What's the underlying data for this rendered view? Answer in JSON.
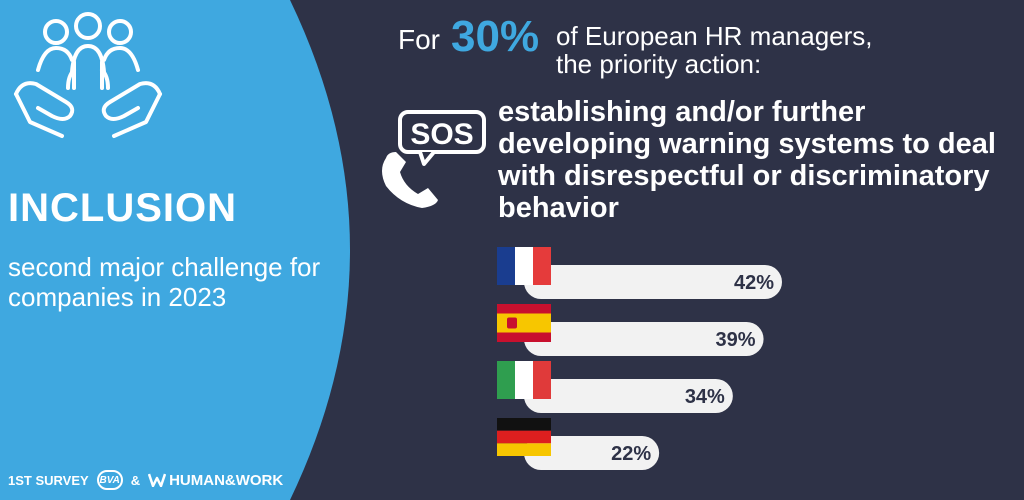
{
  "colors": {
    "background": "#2e3247",
    "accent_blue": "#3fa8e0",
    "bar_fill": "#f2f2f2",
    "bar_text": "#2e3247"
  },
  "left_panel": {
    "icon": "inclusion-hands-people-icon",
    "title": "INCLUSION",
    "subtitle": "second major challenge for companies in 2023"
  },
  "header": {
    "for_text": "For",
    "highlight_percent": "30%",
    "rest_text": "of European HR managers, the priority action:"
  },
  "action": {
    "icon": "sos-phone-icon",
    "text": "establishing and/or further developing warning systems to deal with disrespectful or discriminatory behavior"
  },
  "footer": {
    "survey_label": "1ST SURVEY",
    "logo_bva": "BVA",
    "ampersand": "&",
    "logo_hw": "HUMAN&WORK"
  },
  "chart_data": {
    "type": "bar",
    "orientation": "horizontal",
    "categories": [
      "France",
      "Spain",
      "Italy",
      "Germany"
    ],
    "flag_icons": [
      "france-flag-icon",
      "spain-flag-icon",
      "italy-flag-icon",
      "germany-flag-icon"
    ],
    "values": [
      42,
      39,
      34,
      22
    ],
    "value_labels": [
      "42%",
      "39%",
      "34%",
      "22%"
    ],
    "unit": "%",
    "xlim": [
      0,
      42
    ]
  }
}
